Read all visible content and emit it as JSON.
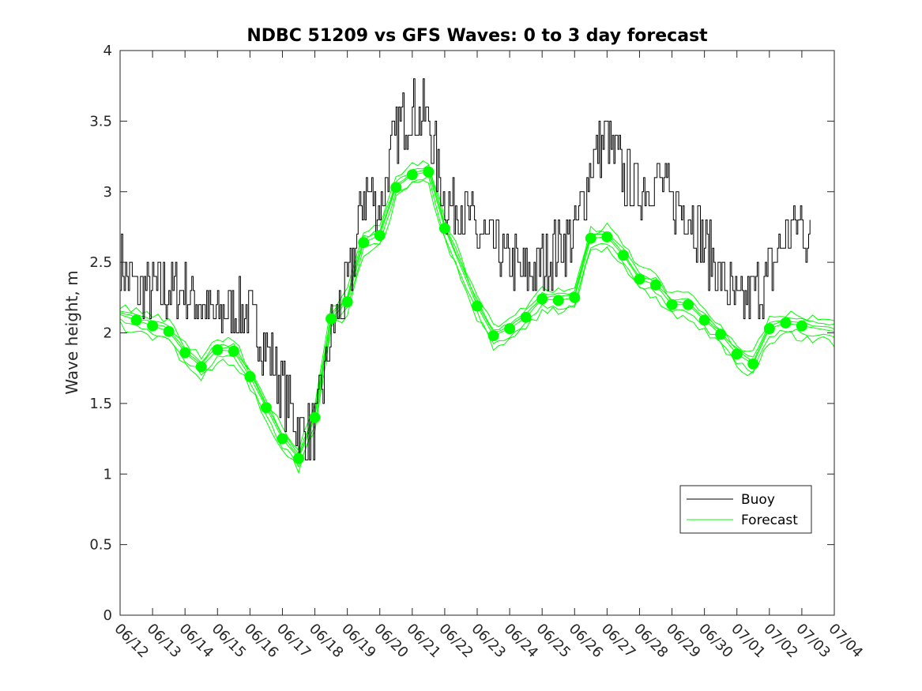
{
  "chart_data": {
    "type": "line",
    "title": "NDBC 51209 vs GFS Waves: 0 to 3 day forecast",
    "xlabel": "",
    "ylabel": "Wave height, m",
    "ylim": [
      0,
      4
    ],
    "yticks": [
      0,
      0.5,
      1,
      1.5,
      2,
      2.5,
      3,
      3.5,
      4
    ],
    "ytick_labels": [
      "0",
      "0.5",
      "1",
      "1.5",
      "2",
      "2.5",
      "3",
      "3.5",
      "4"
    ],
    "xlim": [
      "06/12",
      "07/04"
    ],
    "xtick_labels": [
      "06/12",
      "06/13",
      "06/14",
      "06/15",
      "06/16",
      "06/17",
      "06/18",
      "06/19",
      "06/20",
      "06/21",
      "06/22",
      "06/23",
      "06/24",
      "06/25",
      "06/26",
      "06/27",
      "06/28",
      "06/29",
      "06/30",
      "07/01",
      "07/02",
      "07/03",
      "07/04"
    ],
    "grid": false,
    "legend_position": "lower-right",
    "colors": {
      "buoy": "#000000",
      "forecast": "#00ff00"
    },
    "series": [
      {
        "name": "Buoy",
        "x": [
          "06/12 00:00",
          "06/12 12:00",
          "06/13 00:00",
          "06/13 12:00",
          "06/14 00:00",
          "06/14 12:00",
          "06/15 00:00",
          "06/15 12:00",
          "06/16 00:00",
          "06/16 12:00",
          "06/17 00:00",
          "06/17 12:00",
          "06/18 00:00",
          "06/18 12:00",
          "06/19 00:00",
          "06/19 12:00",
          "06/20 00:00",
          "06/20 12:00",
          "06/21 00:00",
          "06/21 12:00",
          "06/22 00:00",
          "06/22 12:00",
          "06/23 00:00",
          "06/23 12:00",
          "06/24 00:00",
          "06/24 12:00",
          "06/25 00:00",
          "06/25 12:00",
          "06/26 00:00",
          "06/26 12:00",
          "06/27 00:00",
          "06/27 12:00",
          "06/28 00:00",
          "06/28 12:00",
          "06/29 00:00",
          "06/29 12:00",
          "06/30 00:00",
          "06/30 12:00",
          "07/01 00:00",
          "07/01 12:00",
          "07/02 00:00",
          "07/02 12:00",
          "07/03 00:00",
          "07/03 06:00"
        ],
        "values": [
          2.5,
          2.3,
          2.3,
          2.3,
          2.3,
          2.2,
          2.1,
          2.2,
          2.1,
          1.9,
          1.6,
          1.3,
          1.3,
          2.0,
          2.3,
          3.0,
          2.9,
          3.4,
          3.6,
          3.5,
          2.9,
          2.9,
          2.7,
          2.6,
          2.5,
          2.4,
          2.5,
          2.6,
          2.7,
          3.2,
          3.4,
          3.1,
          3.0,
          3.1,
          2.9,
          2.9,
          2.6,
          2.4,
          2.2,
          2.3,
          2.4,
          2.7,
          2.8,
          2.6
        ]
      },
      {
        "name": "Forecast",
        "markers": {
          "x": [
            "06/12 12:00",
            "06/13 00:00",
            "06/13 12:00",
            "06/14 00:00",
            "06/14 12:00",
            "06/15 00:00",
            "06/15 12:00",
            "06/16 00:00",
            "06/16 12:00",
            "06/17 00:00",
            "06/17 12:00",
            "06/18 00:00",
            "06/18 12:00",
            "06/19 00:00",
            "06/19 12:00",
            "06/20 00:00",
            "06/20 12:00",
            "06/21 00:00",
            "06/21 12:00",
            "06/22 00:00",
            "06/23 00:00",
            "06/23 12:00",
            "06/24 00:00",
            "06/24 12:00",
            "06/25 00:00",
            "06/25 12:00",
            "06/26 00:00",
            "06/26 12:00",
            "06/27 00:00",
            "06/27 12:00",
            "06/28 00:00",
            "06/28 12:00",
            "06/29 00:00",
            "06/29 12:00",
            "06/30 00:00",
            "06/30 12:00",
            "07/01 00:00",
            "07/01 12:00",
            "07/02 00:00",
            "07/02 12:00",
            "07/03 00:00"
          ],
          "values": [
            2.09,
            2.05,
            2.01,
            1.86,
            1.76,
            1.88,
            1.87,
            1.69,
            1.47,
            1.25,
            1.11,
            1.4,
            2.1,
            2.22,
            2.64,
            2.69,
            3.03,
            3.12,
            3.14,
            2.74,
            2.19,
            1.98,
            2.03,
            2.11,
            2.24,
            2.23,
            2.25,
            2.67,
            2.68,
            2.55,
            2.38,
            2.34,
            2.2,
            2.2,
            2.09,
            1.99,
            1.85,
            1.78,
            2.03,
            2.07,
            2.05
          ]
        }
      }
    ]
  },
  "legend": {
    "items": [
      {
        "label": "Buoy"
      },
      {
        "label": "Forecast"
      }
    ]
  }
}
